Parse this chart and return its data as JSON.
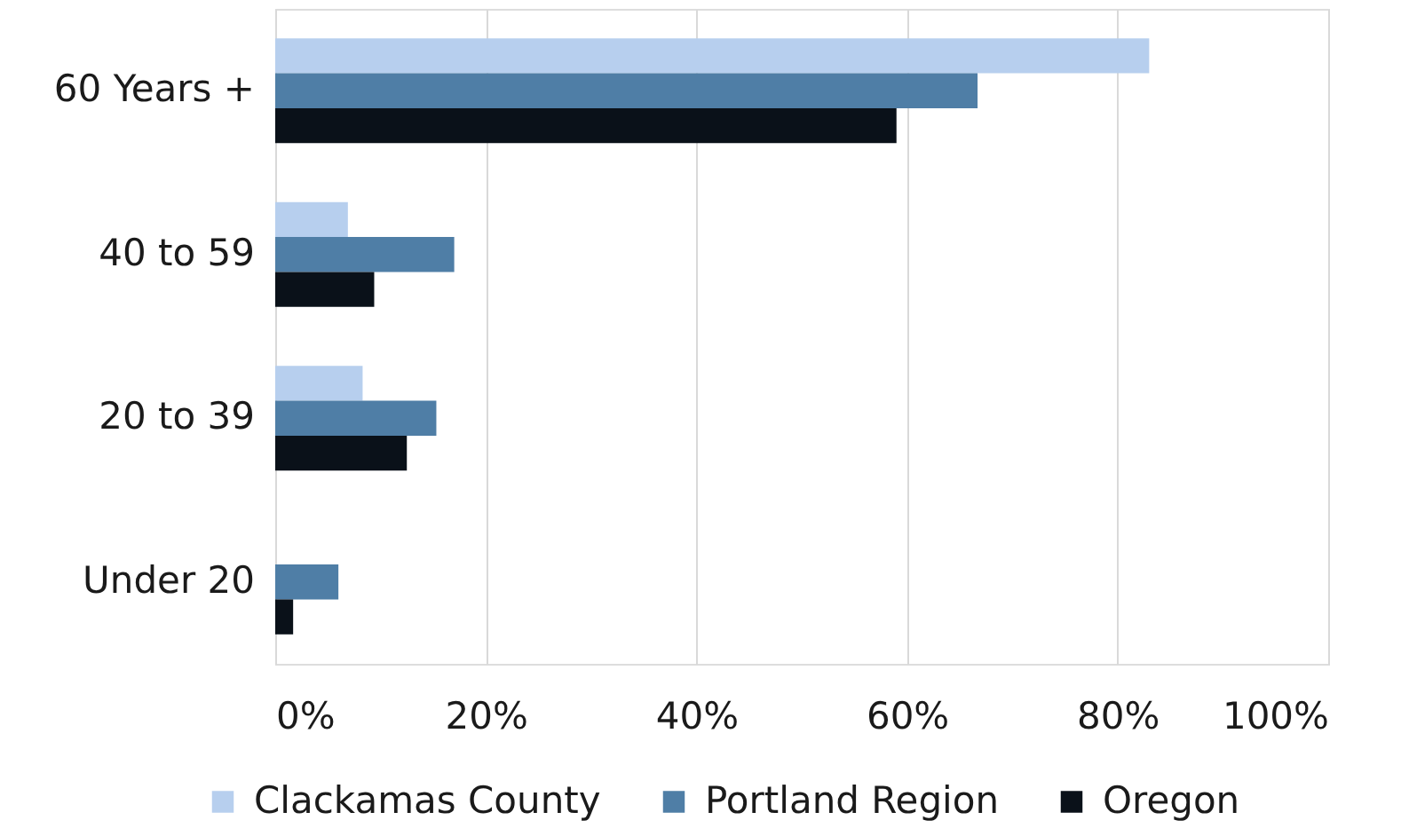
{
  "chart_data": {
    "type": "bar",
    "orientation": "horizontal",
    "categories": [
      "60 Years +",
      "40 to 59",
      "20 to 39",
      "Under 20"
    ],
    "series": [
      {
        "name": "Clackamas County",
        "color": "#b7cfee",
        "values": [
          83,
          6.9,
          8.3,
          null
        ]
      },
      {
        "name": "Portland Region",
        "color": "#4f7ea6",
        "values": [
          66.7,
          17,
          15.3,
          6
        ]
      },
      {
        "name": "Oregon",
        "color": "#0a1119",
        "values": [
          59,
          9.4,
          12.5,
          1.7
        ]
      }
    ],
    "xlim": [
      0,
      100
    ],
    "xticks": [
      {
        "value": 0,
        "label": "0%"
      },
      {
        "value": 20,
        "label": "20%"
      },
      {
        "value": 40,
        "label": "40%"
      },
      {
        "value": 60,
        "label": "60%"
      },
      {
        "value": 80,
        "label": "80%"
      },
      {
        "value": 100,
        "label": "100%"
      }
    ],
    "grid": "x",
    "legend": "bottom"
  }
}
